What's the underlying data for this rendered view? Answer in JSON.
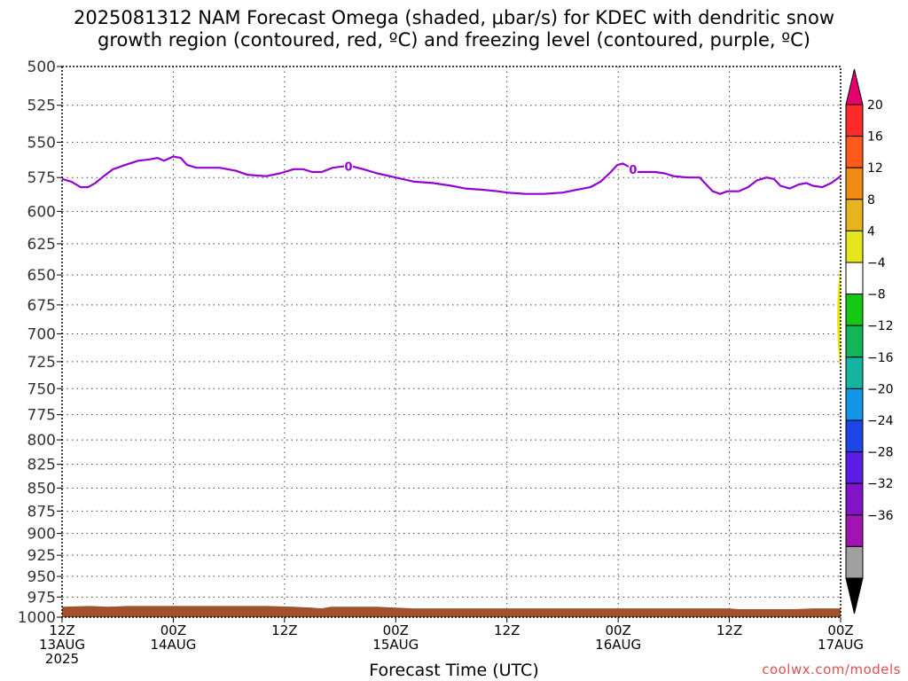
{
  "title": {
    "line1": "2025081312 NAM Forecast Omega (shaded, μbar/s) for KDEC with dendritic snow",
    "line2": "growth region (contoured, red, ºC) and freezing level (contoured, purple, ºC)"
  },
  "credit": "coolwx.com/models",
  "chart_data": {
    "type": "line",
    "xlabel": "Forecast Time (UTC)",
    "y_axis": {
      "scale": "log-pressure",
      "inverted": true,
      "ylim": [
        500,
        1000
      ],
      "ticks": [
        500,
        525,
        550,
        575,
        600,
        625,
        650,
        675,
        700,
        725,
        750,
        775,
        800,
        825,
        850,
        875,
        900,
        925,
        950,
        975,
        1000
      ]
    },
    "x_axis": {
      "range_hours": [
        0,
        84
      ],
      "ticks": [
        {
          "h": 0,
          "lines": [
            "12Z",
            "13AUG",
            "2025"
          ]
        },
        {
          "h": 12,
          "lines": [
            "00Z",
            "14AUG"
          ]
        },
        {
          "h": 24,
          "lines": [
            "12Z"
          ]
        },
        {
          "h": 36,
          "lines": [
            "00Z",
            "15AUG"
          ]
        },
        {
          "h": 48,
          "lines": [
            "12Z"
          ]
        },
        {
          "h": 60,
          "lines": [
            "00Z",
            "16AUG"
          ]
        },
        {
          "h": 72,
          "lines": [
            "12Z"
          ]
        },
        {
          "h": 84,
          "lines": [
            "00Z",
            "17AUG"
          ]
        }
      ]
    },
    "grid": true,
    "freezing_level": {
      "color": "#9400d3",
      "label": "0",
      "label_positions_hours": [
        30.9,
        61.6
      ],
      "points": [
        [
          0,
          576
        ],
        [
          1,
          578
        ],
        [
          2,
          582
        ],
        [
          2.8,
          582
        ],
        [
          3.6,
          579
        ],
        [
          4.5,
          574
        ],
        [
          5.5,
          569
        ],
        [
          6.8,
          566
        ],
        [
          8.2,
          563
        ],
        [
          9.5,
          562
        ],
        [
          10.3,
          561
        ],
        [
          11,
          563
        ],
        [
          12,
          560
        ],
        [
          12.8,
          561
        ],
        [
          13.5,
          566
        ],
        [
          14.5,
          568
        ],
        [
          17,
          568
        ],
        [
          18.7,
          570
        ],
        [
          20,
          573
        ],
        [
          22,
          574
        ],
        [
          23.5,
          572
        ],
        [
          25,
          569
        ],
        [
          26,
          569
        ],
        [
          27,
          571
        ],
        [
          28,
          571
        ],
        [
          29.2,
          568
        ],
        [
          30.3,
          567
        ],
        [
          31.3,
          567
        ],
        [
          32.5,
          569
        ],
        [
          34,
          572
        ],
        [
          36,
          575
        ],
        [
          38,
          578
        ],
        [
          40,
          579
        ],
        [
          42,
          581
        ],
        [
          43.5,
          583
        ],
        [
          45.5,
          584
        ],
        [
          47,
          585
        ],
        [
          48,
          586
        ],
        [
          50,
          587
        ],
        [
          52,
          587
        ],
        [
          54,
          586
        ],
        [
          55.5,
          584
        ],
        [
          57,
          582
        ],
        [
          58.1,
          578
        ],
        [
          59.2,
          571
        ],
        [
          59.9,
          566
        ],
        [
          60.5,
          565
        ],
        [
          61.1,
          567
        ],
        [
          62,
          571
        ],
        [
          63,
          571
        ],
        [
          64,
          571
        ],
        [
          65,
          572
        ],
        [
          66,
          574
        ],
        [
          67.5,
          575
        ],
        [
          68.8,
          575
        ],
        [
          69.5,
          580
        ],
        [
          70.2,
          585
        ],
        [
          71,
          587
        ],
        [
          71.8,
          585
        ],
        [
          73,
          585
        ],
        [
          74,
          582
        ],
        [
          75,
          577
        ],
        [
          76,
          575
        ],
        [
          76.8,
          576
        ],
        [
          77.5,
          581
        ],
        [
          78.5,
          583
        ],
        [
          79.5,
          580
        ],
        [
          80.3,
          579
        ],
        [
          81,
          581
        ],
        [
          82,
          582
        ],
        [
          83,
          579
        ],
        [
          84,
          574
        ]
      ]
    },
    "omega_shading": {
      "color": "#e6e600",
      "h_range": [
        83.8,
        84
      ],
      "p_range": [
        645,
        730
      ]
    },
    "terrain": {
      "color": "#a0522d",
      "points": [
        [
          0,
          987
        ],
        [
          3,
          986
        ],
        [
          5,
          987
        ],
        [
          7,
          986
        ],
        [
          12,
          986
        ],
        [
          22,
          986
        ],
        [
          25,
          987
        ],
        [
          27,
          988
        ],
        [
          28,
          989
        ],
        [
          29,
          987
        ],
        [
          34,
          987
        ],
        [
          36,
          988
        ],
        [
          38,
          989
        ],
        [
          62,
          989
        ],
        [
          72,
          989
        ],
        [
          73,
          990
        ],
        [
          79,
          990
        ],
        [
          81,
          989
        ],
        [
          84,
          989
        ]
      ]
    },
    "colorbar": {
      "labels": [
        "20",
        "16",
        "12",
        "8",
        "4",
        "−4",
        "−8",
        "−12",
        "−16",
        "−20",
        "−24",
        "−28",
        "−32",
        "−36"
      ],
      "colors": [
        "#e6006e",
        "#ff2a2a",
        "#ff5a1e",
        "#f08c14",
        "#e6b41e",
        "#e6e61e",
        "#ffffff",
        "#14c814",
        "#14b45a",
        "#14b4a0",
        "#1496e6",
        "#1e46e6",
        "#5a1ee6",
        "#8214c8",
        "#a014b4",
        "#a0a0a0",
        "#000000"
      ]
    }
  }
}
